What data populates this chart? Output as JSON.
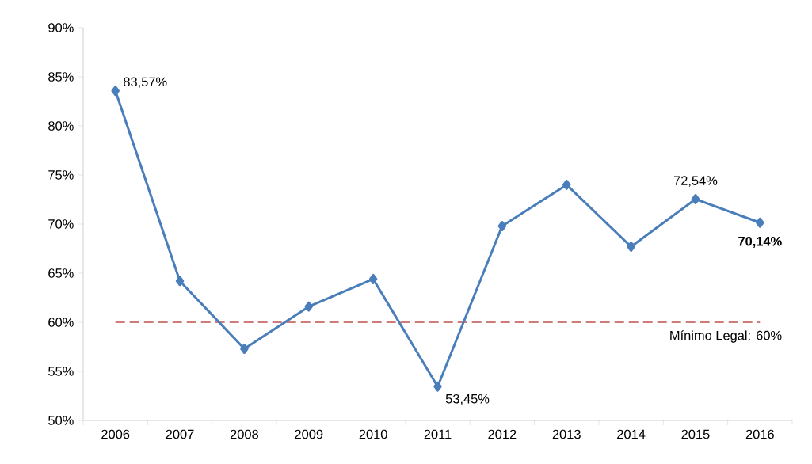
{
  "chart_data": {
    "type": "line",
    "categories": [
      "2006",
      "2007",
      "2008",
      "2009",
      "2010",
      "2011",
      "2012",
      "2013",
      "2014",
      "2015",
      "2016"
    ],
    "series": [
      {
        "color": "#4a7ebb",
        "values": [
          83.57,
          64.2,
          57.3,
          61.6,
          64.4,
          53.45,
          69.8,
          74.0,
          67.7,
          72.54,
          70.14
        ],
        "value_labels": [
          "83,57%",
          null,
          null,
          null,
          null,
          "53,45%",
          null,
          null,
          null,
          "72,54%",
          "**70,14%**"
        ]
      }
    ],
    "ylim": [
      50,
      90
    ],
    "yticks": [
      {
        "value": 50,
        "label": "50%"
      },
      {
        "value": 55,
        "label": "55%"
      },
      {
        "value": 60,
        "label": "60%"
      },
      {
        "value": 65,
        "label": "65%"
      },
      {
        "value": 70,
        "label": "70%"
      },
      {
        "value": 75,
        "label": "75%"
      },
      {
        "value": 80,
        "label": "80%"
      },
      {
        "value": 85,
        "label": "85%"
      },
      {
        "value": 90,
        "label": "90%"
      }
    ],
    "ref_lines": [
      {
        "axis": "y",
        "value": 60,
        "label": "Mínimo Legal: 60%",
        "color": "#c0504d",
        "line_style": "dashed"
      }
    ],
    "marker": "diamond",
    "line_style": "solid",
    "grid": false,
    "legend": false
  }
}
